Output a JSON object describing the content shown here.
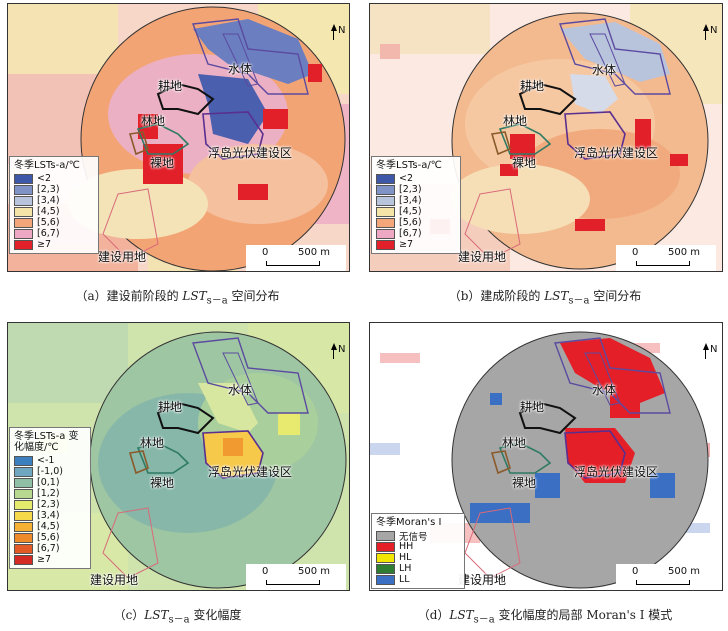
{
  "panels": [
    {
      "id": "a",
      "caption_pre": "（a）建设前阶段的 ",
      "caption_var": "LST",
      "caption_sub": "s－a",
      "caption_post": " 空间分布",
      "legend_title": "冬季LSTs-a/℃",
      "legend": [
        {
          "label": "<2",
          "color": "#3e57a8"
        },
        {
          "label": "[2,3)",
          "color": "#7f93c6"
        },
        {
          "label": "[3,4)",
          "color": "#b8c4dc"
        },
        {
          "label": "[4,5)",
          "color": "#f4e4a8"
        },
        {
          "label": "[5,6)",
          "color": "#f2a679"
        },
        {
          "label": "[6,7)",
          "color": "#eea8c4"
        },
        {
          "label": "≥7",
          "color": "#e2202a"
        }
      ]
    },
    {
      "id": "b",
      "caption_pre": "（b）建成阶段的 ",
      "caption_var": "LST",
      "caption_sub": "s－a",
      "caption_post": " 空间分布",
      "legend_title": "冬季LSTs-a/℃",
      "legend": [
        {
          "label": "<2",
          "color": "#3e57a8"
        },
        {
          "label": "[2,3)",
          "color": "#7f93c6"
        },
        {
          "label": "[3,4)",
          "color": "#b8c4dc"
        },
        {
          "label": "[4,5)",
          "color": "#f4e4a8"
        },
        {
          "label": "[5,6)",
          "color": "#f2a679"
        },
        {
          "label": "[6,7)",
          "color": "#eea8c4"
        },
        {
          "label": "≥7",
          "color": "#e2202a"
        }
      ]
    },
    {
      "id": "c",
      "caption_pre": "（c）",
      "caption_var": "LST",
      "caption_sub": "s－a",
      "caption_post": " 变化幅度",
      "legend_title": "冬季LSTs-a 变化幅度/℃",
      "legend": [
        {
          "label": "<-1",
          "color": "#3c7fbf"
        },
        {
          "label": "[-1,0)",
          "color": "#6fa6c0"
        },
        {
          "label": "[0,1)",
          "color": "#8fbfa5"
        },
        {
          "label": "[1,2)",
          "color": "#b6d88f"
        },
        {
          "label": "[2,3)",
          "color": "#e3ea6c"
        },
        {
          "label": "[3,4)",
          "color": "#f6d84b"
        },
        {
          "label": "[4,5)",
          "color": "#f5b133"
        },
        {
          "label": "[5,6)",
          "color": "#ef8a2b"
        },
        {
          "label": "[6,7)",
          "color": "#e45a26"
        },
        {
          "label": "≥7",
          "color": "#d42a24"
        }
      ]
    },
    {
      "id": "d",
      "caption_pre": "（d）",
      "caption_var": "LST",
      "caption_sub": "s－a",
      "caption_post": " 变化幅度的局部 Moran's I 模式",
      "legend_title": "冬季Moran's I",
      "legend": [
        {
          "label": "无信号",
          "color": "#a6a6a6"
        },
        {
          "label": "HH",
          "color": "#e51f27"
        },
        {
          "label": "HL",
          "color": "#f2e600"
        },
        {
          "label": "LH",
          "color": "#2e7d32"
        },
        {
          "label": "LL",
          "color": "#3a6fc4"
        }
      ]
    }
  ],
  "map_labels": {
    "water": "水体",
    "farmland": "耕地",
    "forest": "林地",
    "bare": "裸地",
    "pv": "浮岛光伏建设区",
    "construction": "建设用地"
  },
  "scale": {
    "zero": "0",
    "distance": "500 m"
  },
  "north": "N"
}
